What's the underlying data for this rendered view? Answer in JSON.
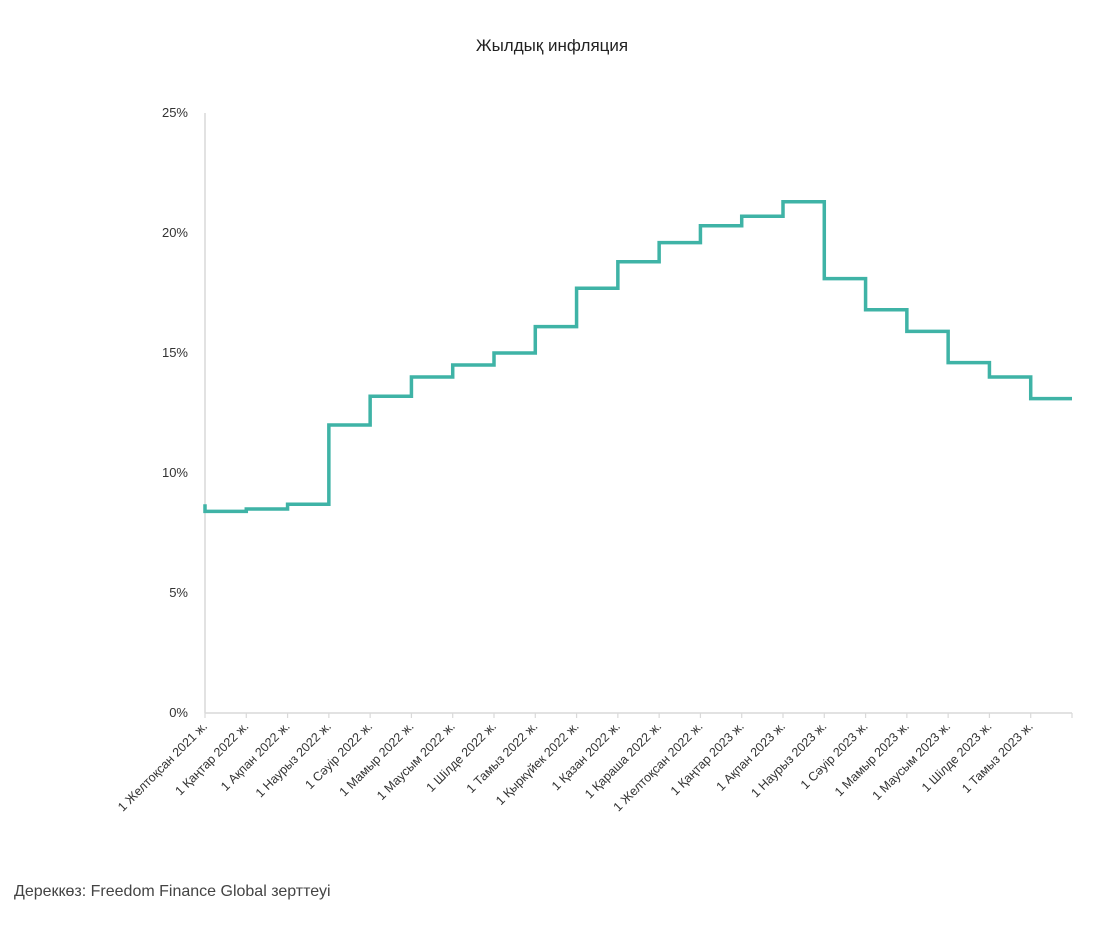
{
  "chart_data": {
    "type": "line",
    "step": true,
    "title": "Жылдық инфляция",
    "xlabel": "",
    "ylabel": "",
    "x": [
      "1 Желтоқсан 2021 ж.",
      "1 Қаңтар 2022 ж.",
      "1 Ақпан 2022 ж.",
      "1 Наурыз 2022 ж.",
      "1 Сәуір 2022 ж.",
      "1 Мамыр 2022 ж.",
      "1 Маусым 2022 ж.",
      "1 Шілде 2022 ж.",
      "1 Тамыз 2022 ж.",
      "1 Қыркүйек 2022 ж.",
      "1 Қазан 2022 ж.",
      "1 Қараша 2022 ж.",
      "1 Желтоқсан 2022 ж.",
      "1 Қаңтар 2023 ж.",
      "1 Ақпан 2023 ж.",
      "1 Наурыз 2023 ж.",
      "1 Сәуір 2023 ж.",
      "1 Мамыр 2023 ж.",
      "1 Маусым 2023 ж.",
      "1 Шілде 2023 ж.",
      "1 Тамыз 2023 ж."
    ],
    "series": [
      {
        "values": [
          8.4,
          8.5,
          8.7,
          12.0,
          13.2,
          14.0,
          14.5,
          15.0,
          16.1,
          17.7,
          18.8,
          19.6,
          20.3,
          20.7,
          21.3,
          18.1,
          16.8,
          15.9,
          14.6,
          14.0,
          13.1
        ]
      }
    ],
    "start_value": 8.7,
    "yticks": [
      "0%",
      "5%",
      "10%",
      "15%",
      "20%",
      "25%"
    ],
    "ylim": [
      0,
      25
    ],
    "grid": false,
    "legend": "none",
    "line_color": "#3fb3a6",
    "axis_color": "#d9d9d9"
  },
  "source_note": "Дереккөз: Freedom Finance Global зерттеуі"
}
